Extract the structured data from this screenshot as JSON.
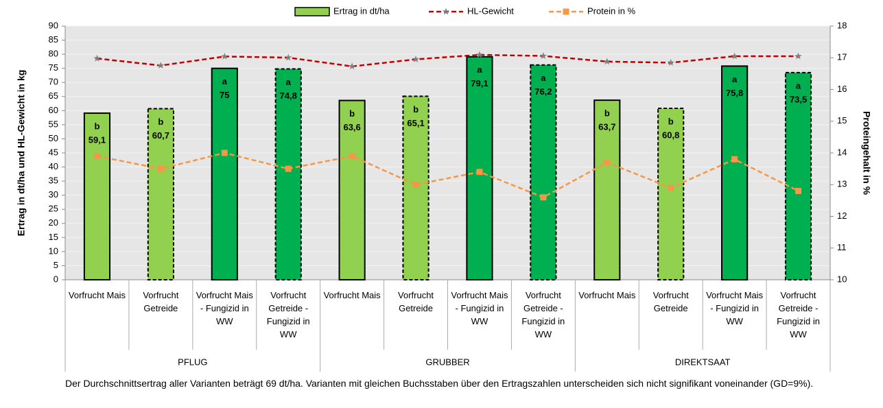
{
  "chart_data": {
    "type": "bar",
    "y_label": "Ertrag in dt/ha und HL-Gewicht in kg",
    "y2_label": "Proteingehalt in %",
    "categories": [
      "Vorfrucht Mais",
      "Vorfrucht Getreide",
      "Vorfrucht Mais - Fungizid in WW",
      "Vorfrucht Getreide - Fungizid in WW",
      "Vorfrucht Mais",
      "Vorfrucht Getreide",
      "Vorfrucht Mais - Fungizid in WW",
      "Vorfrucht Getreide - Fungizid in WW",
      "Vorfrucht Mais",
      "Vorfrucht Getreide",
      "Vorfrucht Mais - Fungizid in WW",
      "Vorfrucht Getreide - Fungizid in WW"
    ],
    "groups": [
      "PFLUG",
      "GRUBBER",
      "DIREKTSAAT"
    ],
    "series": [
      {
        "name": "Ertrag in dt/ha",
        "type": "bar",
        "color": "#92d050",
        "values": [
          59.1,
          60.7,
          75,
          74.8,
          63.6,
          65.1,
          79.1,
          76.2,
          63.7,
          60.8,
          75.8,
          73.5
        ],
        "value_labels": [
          "59,1",
          "60,7",
          "75",
          "74,8",
          "63,6",
          "65,1",
          "79,1",
          "76,2",
          "63,7",
          "60,8",
          "75,8",
          "73,5"
        ],
        "letters": [
          "b",
          "b",
          "a",
          "a",
          "b",
          "b",
          "a",
          "a",
          "b",
          "b",
          "a",
          "a"
        ],
        "colors": [
          "#92d050",
          "#92d050",
          "#00b050",
          "#00b050",
          "#92d050",
          "#92d050",
          "#00b050",
          "#00b050",
          "#92d050",
          "#92d050",
          "#00b050",
          "#00b050"
        ],
        "dashed": [
          false,
          true,
          false,
          true,
          false,
          true,
          false,
          true,
          false,
          true,
          false,
          true
        ]
      },
      {
        "name": "HL-Gewicht",
        "type": "line",
        "color": "#c00000",
        "marker": "star",
        "marker_color": "#7f7f7f",
        "values": [
          78.5,
          76,
          79.2,
          78.8,
          75.7,
          78.2,
          79.8,
          79.4,
          77.4,
          77,
          79.3,
          79.3
        ]
      },
      {
        "name": "Protein in %",
        "type": "line",
        "color": "#f79646",
        "marker": "square",
        "axis": "y2",
        "values": [
          13.9,
          13.5,
          14.0,
          13.5,
          13.9,
          13.0,
          13.4,
          12.6,
          13.7,
          12.9,
          13.8,
          12.8
        ]
      }
    ],
    "ylim": [
      0,
      90
    ],
    "yticks": [
      0,
      5,
      10,
      15,
      20,
      25,
      30,
      35,
      40,
      45,
      50,
      55,
      60,
      65,
      70,
      75,
      80,
      85,
      90
    ],
    "y2lim": [
      10,
      18
    ],
    "y2ticks": [
      10,
      11,
      12,
      13,
      14,
      15,
      16,
      17,
      18
    ],
    "grid": true,
    "legend": "top",
    "footnote": "Der Durchschnittsertrag aller Varianten beträgt 69 dt/ha. Varianten mit gleichen Buchsstaben über den Ertragszahlen unterscheiden sich nicht signifikant voneinander (GD=9%)."
  }
}
